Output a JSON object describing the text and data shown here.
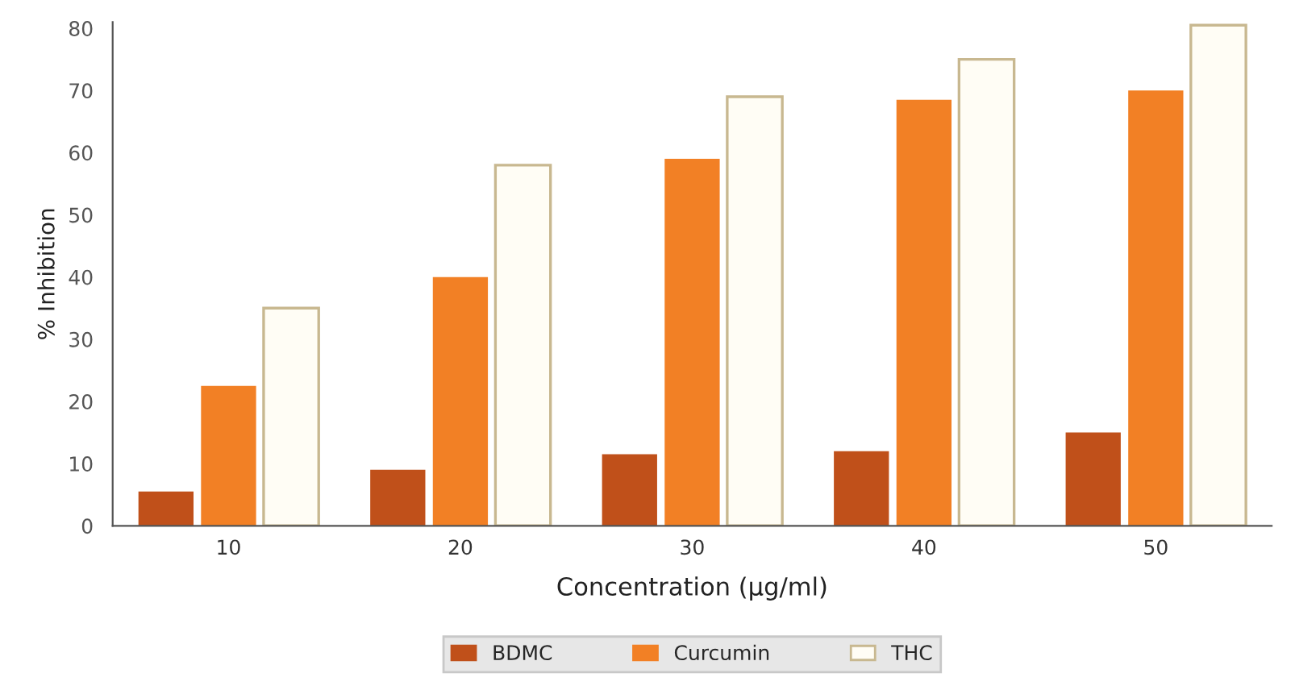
{
  "chart_data": {
    "type": "bar",
    "xlabel": "Concentration (µg/ml)",
    "ylabel": "% Inhibition",
    "categories": [
      "10",
      "20",
      "30",
      "40",
      "50"
    ],
    "series": [
      {
        "name": "BDMC",
        "color": "#c0501a",
        "values": [
          5.5,
          9,
          11.5,
          12,
          15
        ]
      },
      {
        "name": "Curcumin",
        "color": "#f28025",
        "values": [
          22.5,
          40,
          59,
          68.5,
          70
        ]
      },
      {
        "name": "THC",
        "color": "#fffdf5",
        "values": [
          35,
          58,
          69,
          75,
          80.5
        ]
      }
    ],
    "ylim": [
      0,
      81
    ],
    "yticks": [
      0,
      10,
      20,
      30,
      40,
      50,
      60,
      70,
      80
    ],
    "grid": false,
    "legend": "bottom"
  }
}
